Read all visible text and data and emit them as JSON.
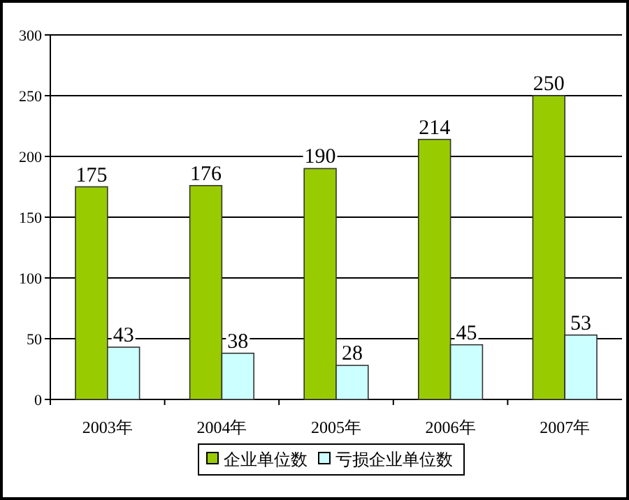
{
  "chart_data": {
    "type": "bar",
    "categories": [
      "2003年",
      "2004年",
      "2005年",
      "2006年",
      "2007年"
    ],
    "series": [
      {
        "name": "企业单位数",
        "color": "#99cc00",
        "values": [
          175,
          176,
          190,
          214,
          250
        ]
      },
      {
        "name": "亏损企业单位数",
        "color": "#ccffff",
        "values": [
          43,
          38,
          28,
          45,
          53
        ]
      }
    ],
    "ylim": [
      0,
      300
    ],
    "yticks": [
      0,
      50,
      100,
      150,
      200,
      250,
      300
    ],
    "grid": "y",
    "legend": "bottom",
    "data_labels": true
  }
}
